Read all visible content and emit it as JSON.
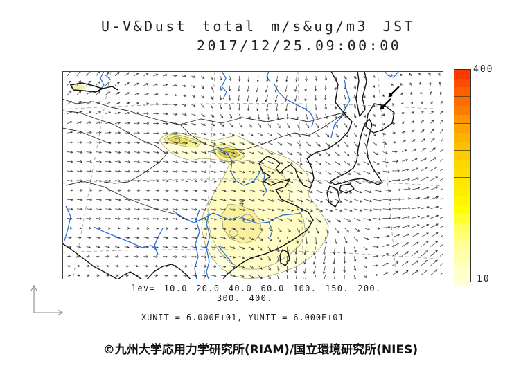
{
  "header": {
    "title": "U-V&Dust total m/s&ug/m3 JST",
    "datetime": "2017/12/25.09:00:00"
  },
  "legend": {
    "lev_line1": "lev= 10.0 20.0 40.0 60.0 100. 150. 200.",
    "lev_line2": "300. 400.",
    "units_line": "XUNIT = 6.000E+01, YUNIT = 6.000E+01"
  },
  "colorbar": {
    "max_label": "400",
    "min_label": "10",
    "colors_top_to_bottom": [
      "#fa3800",
      "#fc4c00",
      "#fe5e00",
      "#ff6d00",
      "#ff7b00",
      "#ff9500",
      "#ffa400",
      "#ffb200",
      "#ffbf00",
      "#ffcb00",
      "#ffd600",
      "#ffdd00",
      "#ffe500",
      "#ffed00",
      "#fff500",
      "#fffd00",
      "#ffff30",
      "#ffff5a",
      "#ffff7a",
      "#ffff95",
      "#ffffa9",
      "#ffffba",
      "#ffffc9",
      "#ffffd6"
    ]
  },
  "map": {
    "contour_label": "40"
  },
  "footer": {
    "copyright": "©九州大学応用力学研究所(RIAM)/国立環境研究所(NIES)"
  },
  "chart_data": {
    "type": "contour-vector-map",
    "title": "U-V&Dust total m/s&ug/m3 JST",
    "timestamp": "2017/12/25.09:00:00",
    "vector_field": "U-V wind (m/s)",
    "shaded_field": "Dust total concentration (ug/m3)",
    "contour_levels": [
      10.0,
      20.0,
      40.0,
      60.0,
      100,
      150,
      200,
      300,
      400
    ],
    "colorbar": {
      "min": 10,
      "max": 400,
      "orientation": "vertical",
      "low_color": "#ffffd6",
      "high_color": "#fa3800"
    },
    "vector_units": {
      "XUNIT": "6.000E+01",
      "YUNIT": "6.000E+01"
    },
    "region": "East Asia",
    "labeled_contour_value": 40,
    "notable_features": [
      "dust plume over eastern China extending to the Yellow Sea, inner contour labeled 40",
      "dust source maxima band in northwest China / Gobi area",
      "cyclonic (counterclockwise) wind vortex east of Japan",
      "westerly flow across the continent, northerly surge along the south China coast"
    ]
  }
}
